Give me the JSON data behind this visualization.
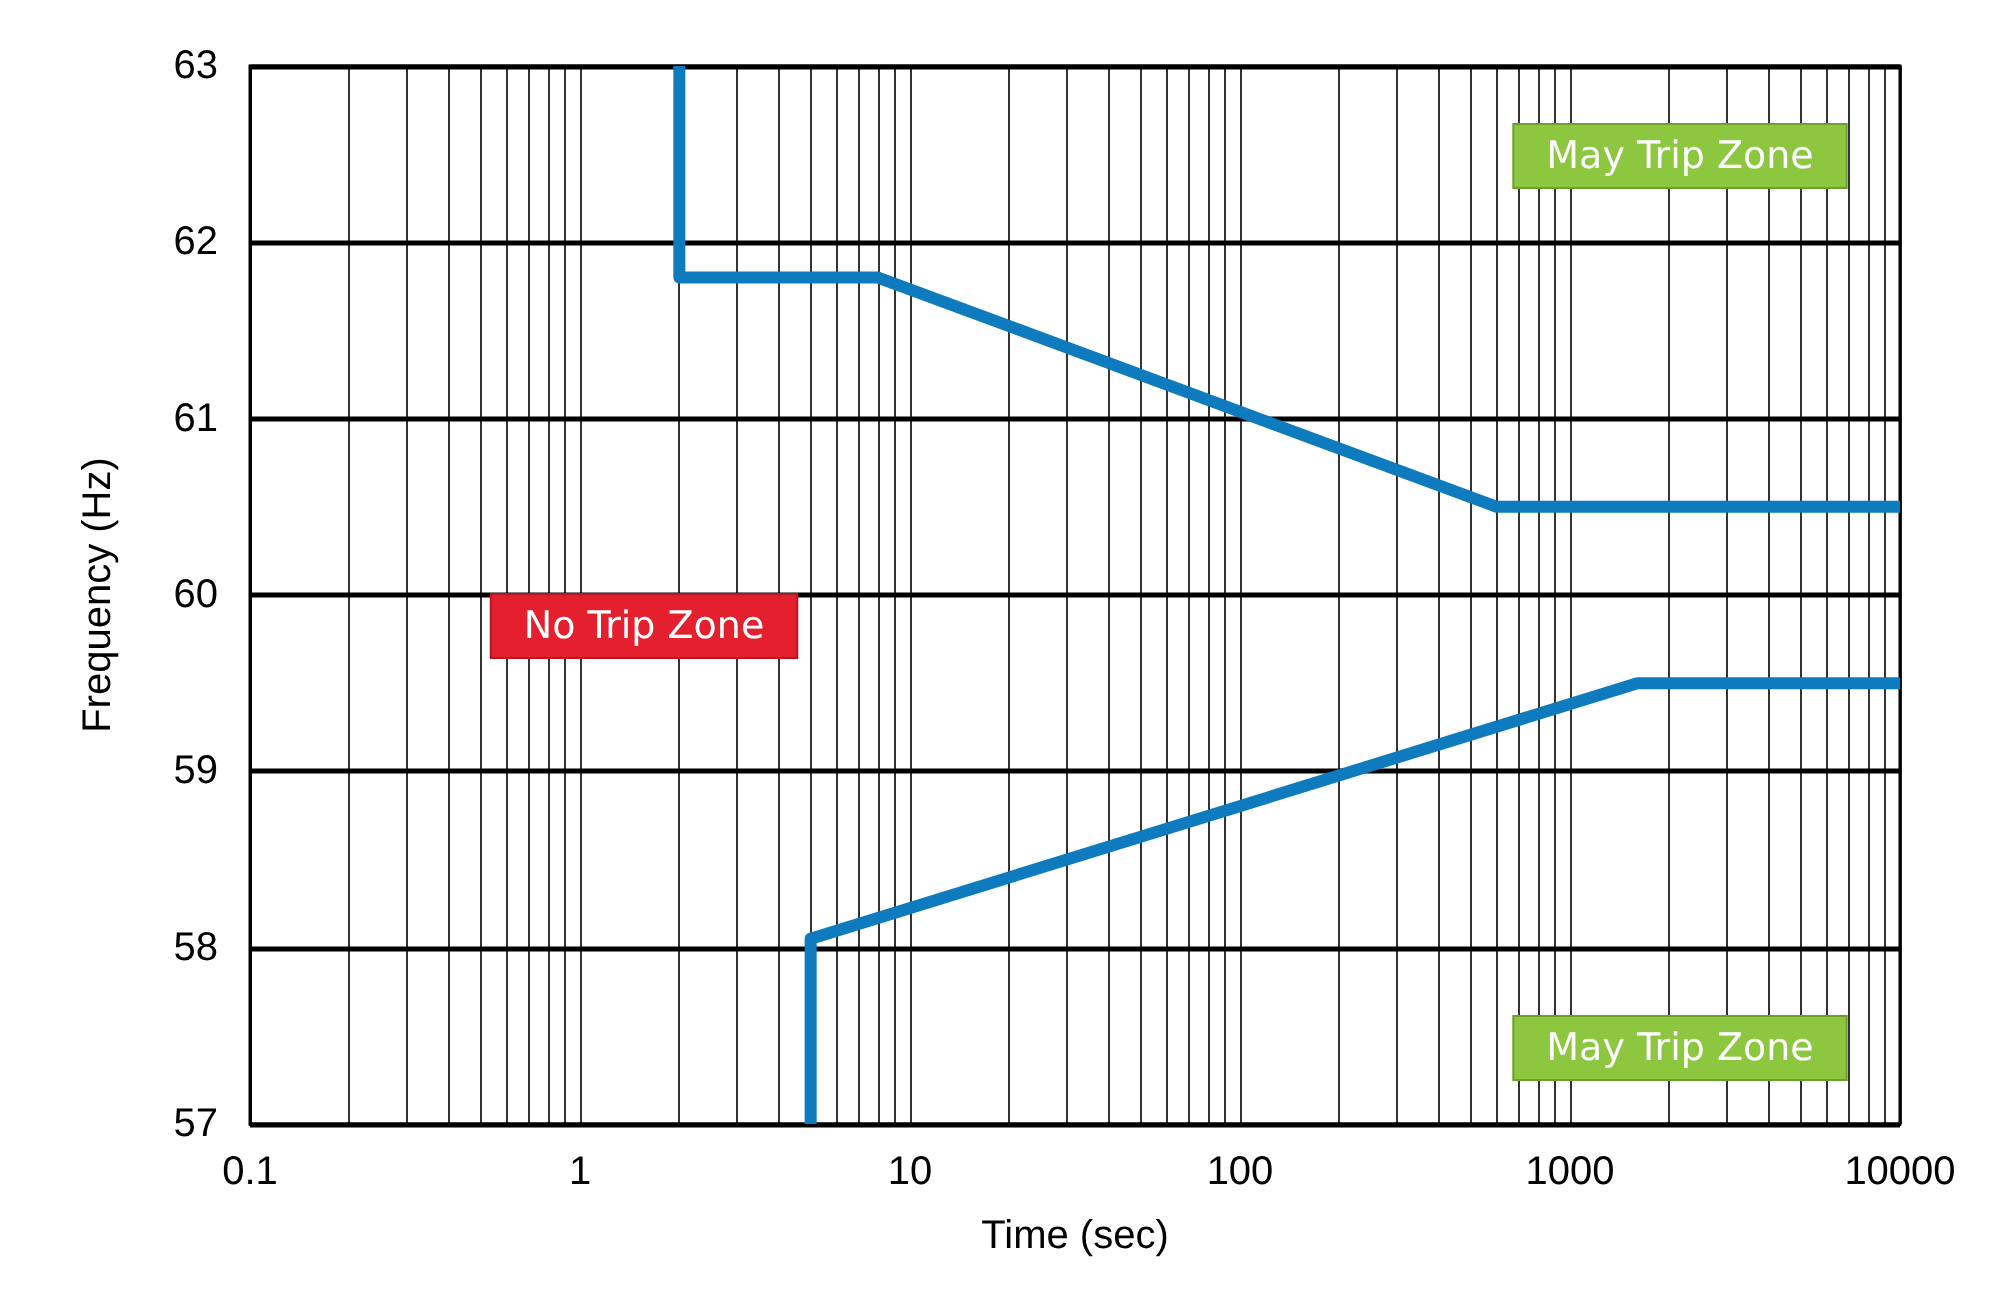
{
  "chart_data": {
    "type": "line",
    "xlabel": "Time (sec)",
    "ylabel": "Frequency (Hz)",
    "log": "x",
    "grid": true,
    "marker": "none",
    "line_style": "solid",
    "xlim": [
      0.1,
      10000
    ],
    "ylim": [
      57,
      63
    ],
    "yticks": [
      57,
      58,
      59,
      60,
      61,
      62,
      63
    ],
    "xticks": [
      0.1,
      {
        "value": 0.2,
        "label": null
      },
      {
        "value": 0.3,
        "label": null
      },
      {
        "value": 0.4,
        "label": null
      },
      {
        "value": 0.5,
        "label": null
      },
      {
        "value": 0.6,
        "label": null
      },
      {
        "value": 0.7,
        "label": null
      },
      {
        "value": 0.8,
        "label": null
      },
      {
        "value": 0.9,
        "label": null
      },
      1,
      {
        "value": 2,
        "label": null
      },
      {
        "value": 3,
        "label": null
      },
      {
        "value": 4,
        "label": null
      },
      {
        "value": 5,
        "label": null
      },
      {
        "value": 6,
        "label": null
      },
      {
        "value": 7,
        "label": null
      },
      {
        "value": 8,
        "label": null
      },
      {
        "value": 9,
        "label": null
      },
      10,
      {
        "value": 20,
        "label": null
      },
      {
        "value": 30,
        "label": null
      },
      {
        "value": 40,
        "label": null
      },
      {
        "value": 50,
        "label": null
      },
      {
        "value": 60,
        "label": null
      },
      {
        "value": 70,
        "label": null
      },
      {
        "value": 80,
        "label": null
      },
      {
        "value": 90,
        "label": null
      },
      100,
      {
        "value": 200,
        "label": null
      },
      {
        "value": 300,
        "label": null
      },
      {
        "value": 400,
        "label": null
      },
      {
        "value": 500,
        "label": null
      },
      {
        "value": 600,
        "label": null
      },
      {
        "value": 700,
        "label": null
      },
      {
        "value": 800,
        "label": null
      },
      {
        "value": 900,
        "label": null
      },
      1000,
      {
        "value": 2000,
        "label": null
      },
      {
        "value": 3000,
        "label": null
      },
      {
        "value": 4000,
        "label": null
      },
      {
        "value": 5000,
        "label": null
      },
      {
        "value": 6000,
        "label": null
      },
      {
        "value": 7000,
        "label": null
      },
      {
        "value": 8000,
        "label": null
      },
      {
        "value": 9000,
        "label": null
      },
      10000
    ],
    "series": [
      {
        "color": "#0e7bbf",
        "x": [
          2,
          2,
          8,
          600,
          10000
        ],
        "values": [
          63,
          61.8,
          61.8,
          60.5,
          60.5
        ]
      },
      {
        "color": "#0e7bbf",
        "x": [
          5,
          5,
          1600,
          10000
        ],
        "values": [
          57,
          58.05,
          59.5,
          59.5
        ]
      }
    ],
    "annotations": [
      "May Trip Zone",
      "No Trip Zone",
      "May Trip Zone"
    ]
  }
}
